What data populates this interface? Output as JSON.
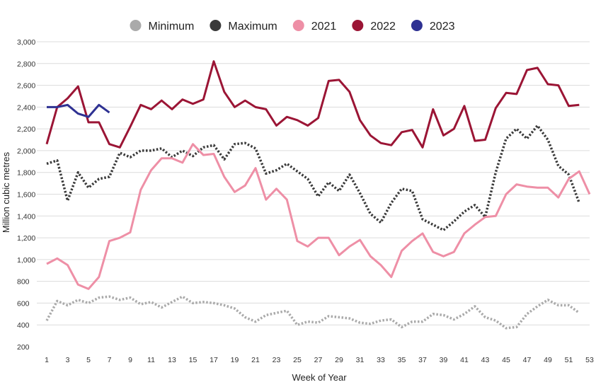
{
  "chart_data": {
    "type": "line",
    "title": "",
    "xlabel": "Week of Year",
    "ylabel": "Million cubic metres",
    "x_ticks": [
      1,
      3,
      5,
      7,
      9,
      11,
      13,
      15,
      17,
      19,
      21,
      23,
      25,
      27,
      29,
      31,
      33,
      35,
      37,
      39,
      41,
      43,
      45,
      47,
      49,
      51,
      53
    ],
    "y_ticks": [
      200,
      400,
      600,
      800,
      1000,
      1200,
      1400,
      1600,
      1800,
      2000,
      2200,
      2400,
      2600,
      2800,
      3000
    ],
    "y_tick_labels": [
      "200",
      "400",
      "600",
      "800",
      "1,000",
      "1,200",
      "1,400",
      "1,600",
      "1,800",
      "2,000",
      "2,200",
      "2,400",
      "2,600",
      "2,800",
      "3,000"
    ],
    "xlim": [
      1,
      53
    ],
    "ylim": [
      200,
      3000
    ],
    "grid": "horizontal",
    "legend_position": "top",
    "series": [
      {
        "name": "Minimum",
        "color": "#aaaaaa",
        "style": "dotted",
        "x": [
          1,
          2,
          3,
          4,
          5,
          6,
          7,
          8,
          9,
          10,
          11,
          12,
          13,
          14,
          15,
          16,
          17,
          18,
          19,
          20,
          21,
          22,
          23,
          24,
          25,
          26,
          27,
          28,
          29,
          30,
          31,
          32,
          33,
          34,
          35,
          36,
          37,
          38,
          39,
          40,
          41,
          42,
          43,
          44,
          45,
          46,
          47,
          48,
          49,
          50,
          51,
          52
        ],
        "values": [
          440,
          620,
          580,
          630,
          600,
          650,
          660,
          630,
          650,
          590,
          610,
          560,
          610,
          660,
          600,
          610,
          600,
          580,
          550,
          470,
          430,
          490,
          510,
          530,
          400,
          430,
          420,
          480,
          470,
          460,
          420,
          410,
          440,
          450,
          380,
          430,
          430,
          500,
          490,
          450,
          500,
          570,
          470,
          440,
          370,
          380,
          500,
          570,
          630,
          580,
          580,
          510
        ]
      },
      {
        "name": "Maximum",
        "color": "#3a3a3a",
        "style": "dotted",
        "x": [
          1,
          2,
          3,
          4,
          5,
          6,
          7,
          8,
          9,
          10,
          11,
          12,
          13,
          14,
          15,
          16,
          17,
          18,
          19,
          20,
          21,
          22,
          23,
          24,
          25,
          26,
          27,
          28,
          29,
          30,
          31,
          32,
          33,
          34,
          35,
          36,
          37,
          38,
          39,
          40,
          41,
          42,
          43,
          44,
          45,
          46,
          47,
          48,
          49,
          50,
          51,
          52
        ],
        "values": [
          1880,
          1910,
          1540,
          1800,
          1660,
          1740,
          1760,
          1980,
          1940,
          2000,
          2000,
          2020,
          1940,
          2000,
          1950,
          2030,
          2050,
          1920,
          2060,
          2070,
          2020,
          1790,
          1820,
          1880,
          1810,
          1740,
          1580,
          1710,
          1630,
          1780,
          1610,
          1420,
          1340,
          1520,
          1650,
          1630,
          1370,
          1320,
          1270,
          1350,
          1440,
          1500,
          1390,
          1800,
          2110,
          2200,
          2110,
          2230,
          2100,
          1860,
          1780,
          1520
        ]
      },
      {
        "name": "2021",
        "color": "#ee8fa6",
        "style": "solid",
        "x": [
          1,
          2,
          3,
          4,
          5,
          6,
          7,
          8,
          9,
          10,
          11,
          12,
          13,
          14,
          15,
          16,
          17,
          18,
          19,
          20,
          21,
          22,
          23,
          24,
          25,
          26,
          27,
          28,
          29,
          30,
          31,
          32,
          33,
          34,
          35,
          36,
          37,
          38,
          39,
          40,
          41,
          42,
          43,
          44,
          45,
          46,
          47,
          48,
          49,
          50,
          51,
          52,
          53
        ],
        "values": [
          960,
          1010,
          950,
          770,
          730,
          840,
          1170,
          1200,
          1250,
          1640,
          1820,
          1930,
          1930,
          1890,
          2060,
          1960,
          1970,
          1760,
          1620,
          1680,
          1840,
          1550,
          1650,
          1550,
          1170,
          1120,
          1200,
          1200,
          1040,
          1120,
          1180,
          1030,
          950,
          840,
          1080,
          1170,
          1240,
          1070,
          1030,
          1070,
          1240,
          1320,
          1390,
          1400,
          1600,
          1690,
          1670,
          1660,
          1660,
          1570,
          1740,
          1810,
          1600
        ]
      },
      {
        "name": "2022",
        "color": "#9b1535",
        "style": "solid",
        "x": [
          1,
          2,
          3,
          4,
          5,
          6,
          7,
          8,
          9,
          10,
          11,
          12,
          13,
          14,
          15,
          16,
          17,
          18,
          19,
          20,
          21,
          22,
          23,
          24,
          25,
          26,
          27,
          28,
          29,
          30,
          31,
          32,
          33,
          34,
          35,
          36,
          37,
          38,
          39,
          40,
          41,
          42,
          43,
          44,
          45,
          46,
          47,
          48,
          49,
          50,
          51,
          52
        ],
        "values": [
          2060,
          2400,
          2480,
          2590,
          2260,
          2260,
          2060,
          2030,
          2220,
          2420,
          2380,
          2460,
          2380,
          2470,
          2430,
          2470,
          2820,
          2540,
          2400,
          2460,
          2400,
          2380,
          2230,
          2310,
          2280,
          2230,
          2300,
          2640,
          2650,
          2540,
          2280,
          2140,
          2070,
          2050,
          2170,
          2190,
          2030,
          2380,
          2140,
          2200,
          2410,
          2090,
          2100,
          2390,
          2530,
          2520,
          2740,
          2760,
          2610,
          2600,
          2410,
          2420
        ]
      },
      {
        "name": "2023",
        "color": "#2e3192",
        "style": "solid",
        "x": [
          1,
          2,
          3,
          4,
          5,
          6,
          7
        ],
        "values": [
          2400,
          2400,
          2420,
          2340,
          2310,
          2420,
          2350
        ]
      }
    ]
  }
}
